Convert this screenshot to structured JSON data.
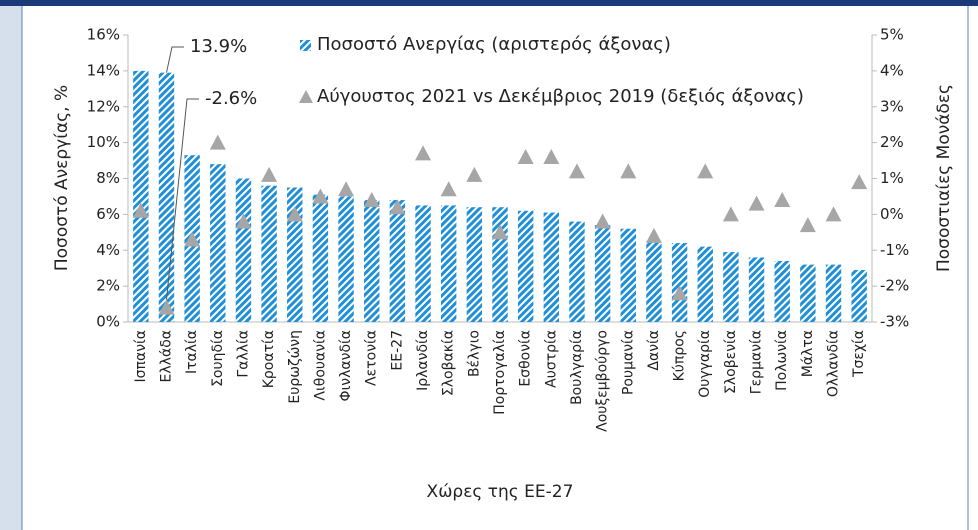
{
  "chart_data": {
    "type": "bar",
    "x_label": "Χώρες της ΕΕ-27",
    "y_label": "Ποσοστό Ανεργίας, %",
    "y2_label": "Ποσοστιαίες Μονάδες",
    "categories": [
      "Ισπανία",
      "Ελλάδα",
      "Ιταλία",
      "Σουηδία",
      "Γαλλία",
      "Κροατία",
      "Ευρωζώνη",
      "Λιθουανία",
      "Φινλανδία",
      "Λετονία",
      "ΕΕ-27",
      "Ιρλανδία",
      "Σλοβακία",
      "Βέλγιο",
      "Πορτογαλία",
      "Εσθονία",
      "Αυστρία",
      "Βουλγαρία",
      "Λουξεμβούργο",
      "Ρουμανία",
      "Δανία",
      "Κύπρος",
      "Ουγγαρία",
      "Σλοβενία",
      "Γερμανία",
      "Πολωνία",
      "Μάλτα",
      "Ολλανδία",
      "Τσεχία"
    ],
    "series": [
      {
        "name": "Ποσοστό Ανεργίας (αριστερός άξονας)",
        "color": "#1f8fd8",
        "values": [
          14.0,
          13.9,
          9.3,
          8.8,
          8.0,
          7.6,
          7.5,
          7.1,
          7.0,
          6.8,
          6.8,
          6.5,
          6.5,
          6.4,
          6.4,
          6.2,
          6.1,
          5.6,
          5.4,
          5.2,
          4.5,
          4.4,
          4.2,
          3.9,
          3.6,
          3.4,
          3.2,
          3.2,
          2.9
        ]
      },
      {
        "name": "Αύγουστος 2021 vs Δεκέμβριος 2019 (δεξιός άξονας)",
        "color": "#a6a6a6",
        "axis": "y2",
        "values": [
          0.1,
          -2.6,
          -0.7,
          2.0,
          -0.2,
          1.1,
          0.0,
          0.5,
          0.7,
          0.4,
          0.2,
          1.7,
          0.7,
          1.1,
          -0.5,
          1.6,
          1.6,
          1.2,
          -0.2,
          1.2,
          -0.6,
          -2.2,
          1.2,
          0.0,
          0.3,
          0.4,
          -0.3,
          0.0,
          0.9
        ]
      }
    ],
    "annotations": [
      {
        "text": "13.9%",
        "series": 0,
        "index": 1
      },
      {
        "text": "-2.6%",
        "series": 1,
        "index": 1
      }
    ],
    "ylim": [
      0,
      16
    ],
    "yticks": [
      {
        "value": 0,
        "label": "0%"
      },
      {
        "value": 2,
        "label": "2%"
      },
      {
        "value": 4,
        "label": "4%"
      },
      {
        "value": 6,
        "label": "6%"
      },
      {
        "value": 8,
        "label": "8%"
      },
      {
        "value": 10,
        "label": "10%"
      },
      {
        "value": 12,
        "label": "12%"
      },
      {
        "value": 14,
        "label": "14%"
      },
      {
        "value": 16,
        "label": "16%"
      }
    ],
    "y2lim": [
      -3,
      5
    ],
    "y2ticks": [
      {
        "value": -3,
        "label": "-3%"
      },
      {
        "value": -2,
        "label": "-2%"
      },
      {
        "value": -1,
        "label": "-1%"
      },
      {
        "value": 0,
        "label": "0%"
      },
      {
        "value": 1,
        "label": "1%"
      },
      {
        "value": 2,
        "label": "2%"
      },
      {
        "value": 3,
        "label": "3%"
      },
      {
        "value": 4,
        "label": "4%"
      },
      {
        "value": 5,
        "label": "5%"
      }
    ],
    "grid": false
  }
}
